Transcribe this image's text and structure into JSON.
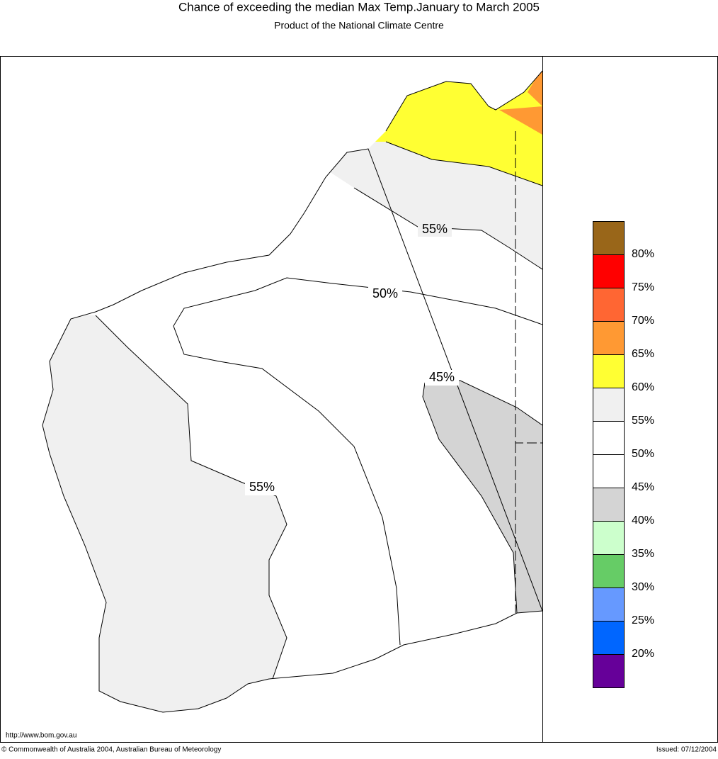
{
  "header": {
    "title": "Chance of exceeding the median Max Temp.January to March 2005",
    "subtitle": "Product of the National Climate Centre"
  },
  "map": {
    "contour_labels": [
      "55%",
      "50%",
      "45%",
      "55%"
    ]
  },
  "legend": {
    "colors": [
      "#996619",
      "#ff0000",
      "#ff6633",
      "#ff9933",
      "#ffff33",
      "#f0f0f0",
      "#ffffff",
      "#ffffff",
      "#d4d4d4",
      "#ccffcc",
      "#66cc66",
      "#6699ff",
      "#0066ff",
      "#660099"
    ],
    "labels": [
      "80%",
      "75%",
      "70%",
      "65%",
      "60%",
      "55%",
      "50%",
      "45%",
      "40%",
      "35%",
      "30%",
      "25%",
      "20%"
    ]
  },
  "footer": {
    "url": "http://www.bom.gov.au",
    "copyright": "© Commonwealth of Australia 2004, Australian Bureau of Meteorology",
    "issued": "Issued: 07/12/2004"
  }
}
